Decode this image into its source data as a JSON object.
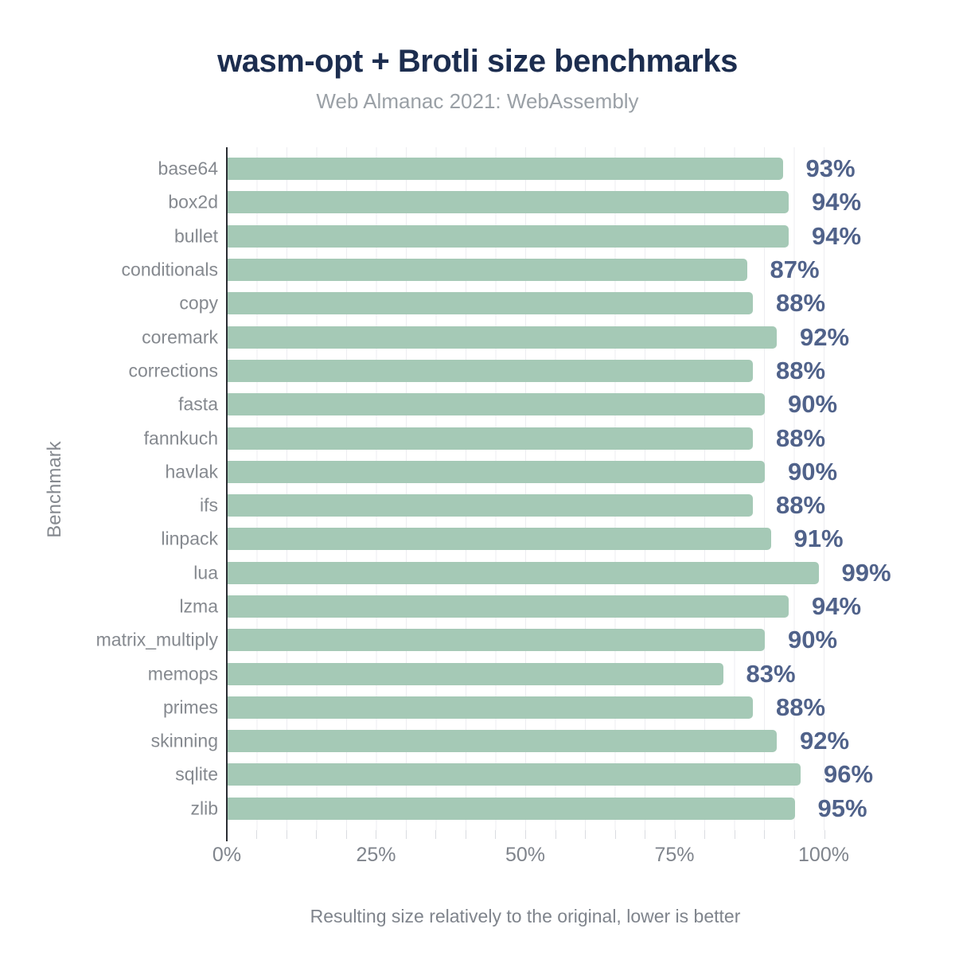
{
  "title": "wasm-opt + Brotli size benchmarks",
  "subtitle": "Web Almanac 2021: WebAssembly",
  "chart_data": {
    "type": "bar",
    "orientation": "horizontal",
    "title": "wasm-opt + Brotli size benchmarks",
    "subtitle": "Web Almanac 2021: WebAssembly",
    "xlabel": "Resulting size relatively to the original, lower is better",
    "ylabel": "Benchmark",
    "xlim": [
      0,
      100
    ],
    "x_tick_labels": [
      "0%",
      "25%",
      "50%",
      "75%",
      "100%"
    ],
    "x_tick_positions": [
      0,
      25,
      50,
      75,
      100
    ],
    "x_minor_tick_step": 5,
    "grid": "vertical minor gridlines every 5%",
    "legend": "none",
    "value_suffix": "%",
    "categories": [
      "base64",
      "box2d",
      "bullet",
      "conditionals",
      "copy",
      "coremark",
      "corrections",
      "fasta",
      "fannkuch",
      "havlak",
      "ifs",
      "linpack",
      "lua",
      "lzma",
      "matrix_multiply",
      "memops",
      "primes",
      "skinning",
      "sqlite",
      "zlib"
    ],
    "values": [
      93,
      94,
      94,
      87,
      88,
      92,
      88,
      90,
      88,
      90,
      88,
      91,
      99,
      94,
      90,
      83,
      88,
      92,
      96,
      95
    ],
    "colors": {
      "bar": "#a5c9b6",
      "value_label": "#50628a",
      "title": "#1c2d4f",
      "subtitle": "#9aa0a6",
      "axis_text": "#85898f",
      "tick_text": "#7f848c",
      "gridline": "#ededf1",
      "axis_line": "#2a2d33"
    }
  }
}
